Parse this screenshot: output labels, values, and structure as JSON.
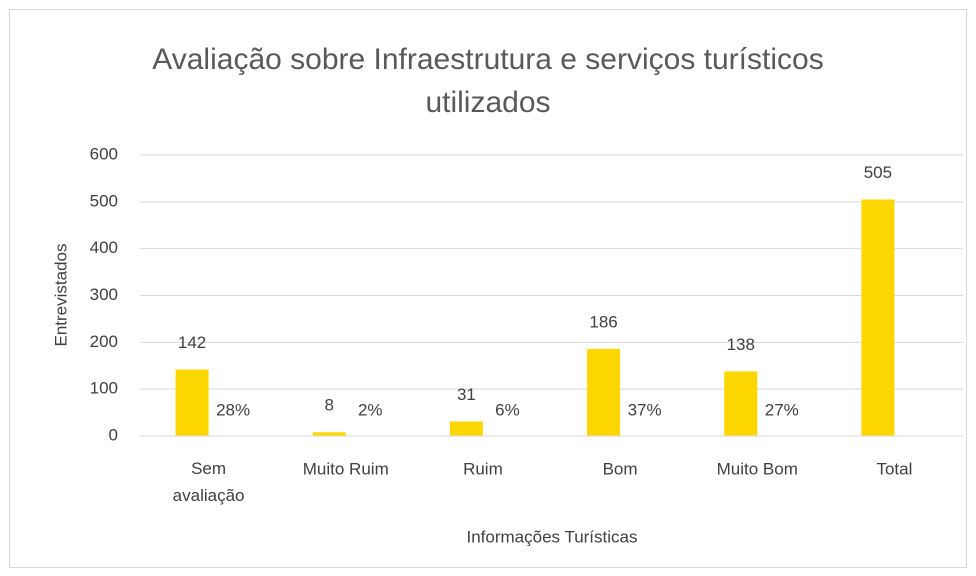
{
  "chart_data": {
    "type": "bar",
    "title": "Avaliação sobre Infraestrutura e serviços turísticos utilizados",
    "x_label": "Informações Turísticas",
    "y_label": "Entrevistados",
    "categories": [
      "Sem avaliação",
      "Muito Ruim",
      "Ruim",
      "Bom",
      "Muito Bom",
      "Total"
    ],
    "series": [
      {
        "color": "#ffd700",
        "values": [
          142,
          8,
          31,
          186,
          138,
          505
        ]
      },
      {
        "color": "#ffd700",
        "values": [
          0.28,
          0.02,
          0.06,
          0.37,
          0.27,
          null
        ],
        "value_labels": [
          "28%",
          "2%",
          "6%",
          "37%",
          "27%",
          null
        ]
      }
    ],
    "ylim": [
      0,
      600
    ],
    "yticks": [
      0,
      100,
      200,
      300,
      400,
      500,
      600
    ],
    "grid": true
  }
}
